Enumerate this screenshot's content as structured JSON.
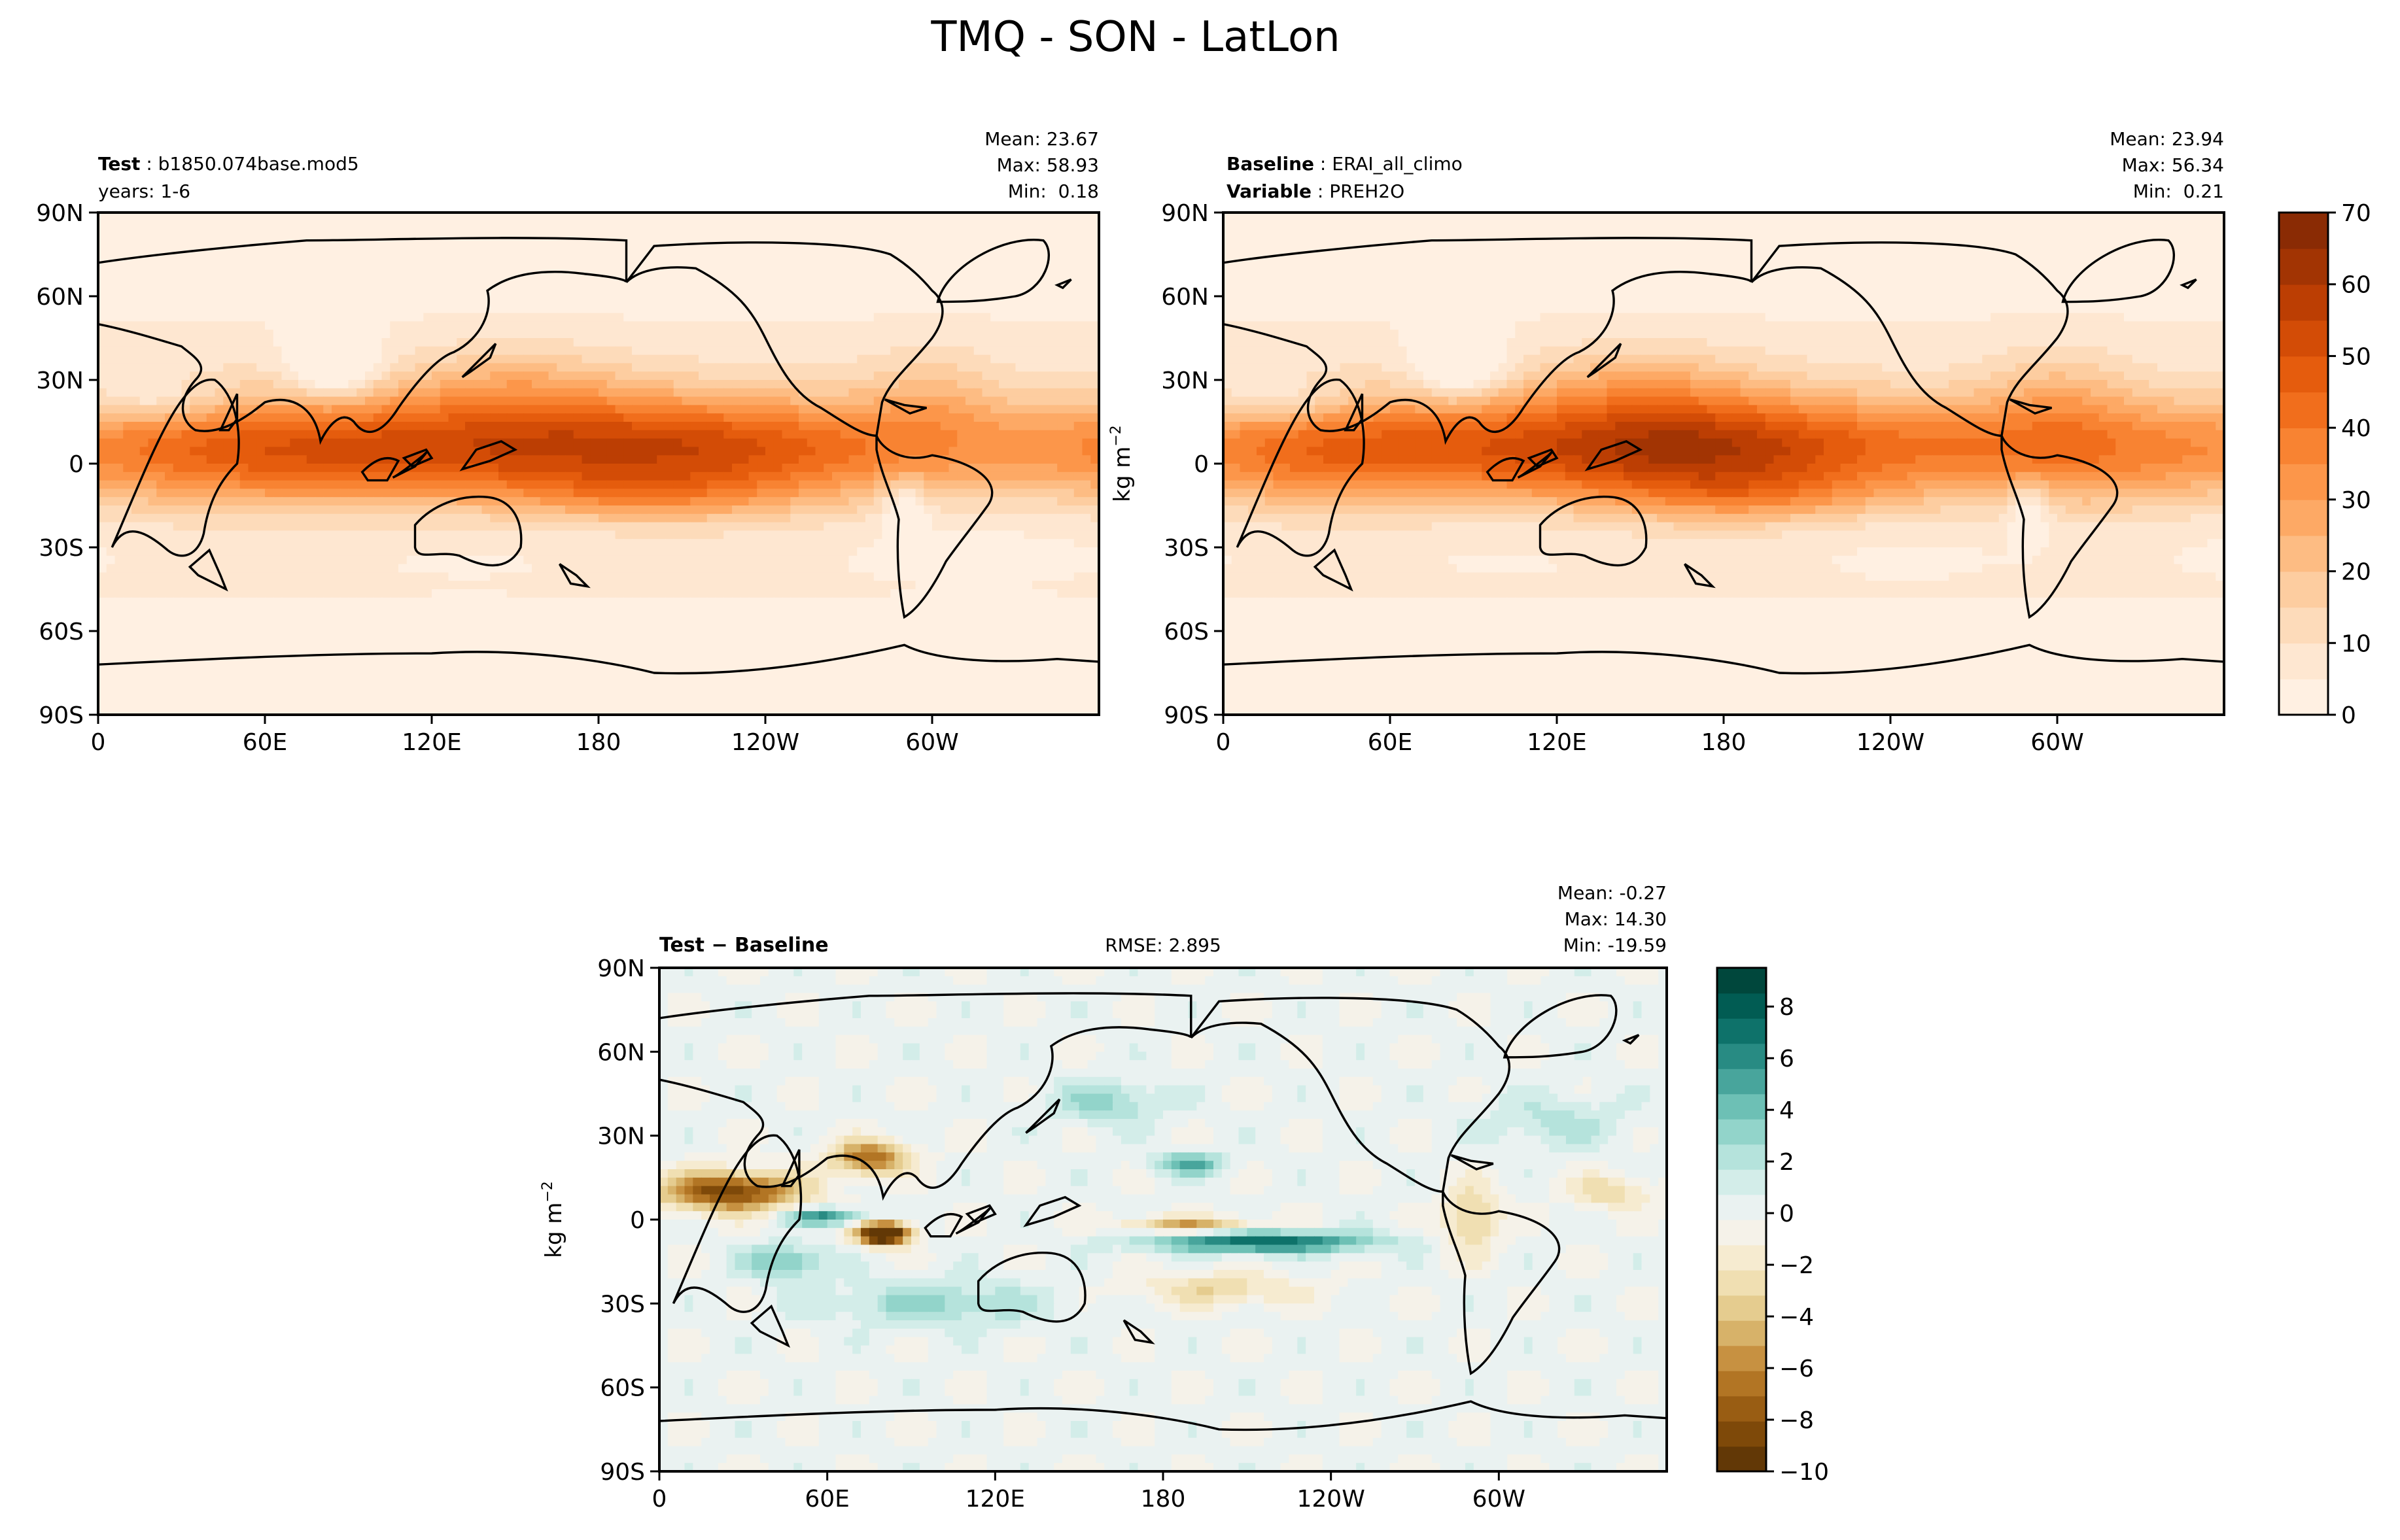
{
  "figure": {
    "title": "TMQ - SON - LatLon"
  },
  "chart_data": [
    {
      "type": "heatmap",
      "panel": "test",
      "header_left": [
        {
          "bold": "Test",
          "normal": "b1850.074base.mod5"
        },
        {
          "bold": "",
          "normal": "years: 1-6"
        }
      ],
      "header_center": "",
      "stats": [
        "Mean: 23.67",
        "Max: 58.93",
        "Min:  0.18"
      ],
      "field": {
        "mean": 23.67,
        "max": 58.93,
        "min": 0.18
      },
      "xticks": [
        "0",
        "60E",
        "120E",
        "180",
        "120W",
        "60W"
      ],
      "xtick_values": [
        0,
        60,
        120,
        180,
        240,
        300
      ],
      "yticks": [
        "90N",
        "60N",
        "30N",
        "0",
        "30S",
        "60S",
        "90S"
      ],
      "ytick_values": [
        90,
        60,
        30,
        0,
        -30,
        -60,
        -90
      ],
      "xlim": [
        0,
        360
      ],
      "ylim": [
        -90,
        90
      ],
      "ylabel": "",
      "colorbar": "shared-sequential"
    },
    {
      "type": "heatmap",
      "panel": "baseline",
      "header_left": [
        {
          "bold": "Baseline",
          "normal": "ERAI_all_climo"
        },
        {
          "bold": "Variable",
          "normal": "PREH2O"
        }
      ],
      "header_center": "",
      "stats": [
        "Mean: 23.94",
        "Max: 56.34",
        "Min:  0.21"
      ],
      "field": {
        "mean": 23.94,
        "max": 56.34,
        "min": 0.21
      },
      "xticks": [
        "0",
        "60E",
        "120E",
        "180",
        "120W",
        "60W"
      ],
      "xtick_values": [
        0,
        60,
        120,
        180,
        240,
        300
      ],
      "yticks": [
        "90N",
        "60N",
        "30N",
        "0",
        "30S",
        "60S",
        "90S"
      ],
      "ytick_values": [
        90,
        60,
        30,
        0,
        -30,
        -60,
        -90
      ],
      "xlim": [
        0,
        360
      ],
      "ylim": [
        -90,
        90
      ],
      "ylabel": "kg m",
      "ylabel_sup": "−2",
      "colorbar": {
        "ticks": [
          "0",
          "10",
          "20",
          "30",
          "40",
          "50",
          "60",
          "70"
        ],
        "tick_values": [
          0,
          10,
          20,
          30,
          40,
          50,
          60,
          70
        ],
        "range": [
          0,
          70
        ],
        "levels": 14,
        "colors": [
          "#fff5eb",
          "#fee8d3",
          "#fdd8b3",
          "#fdc28c",
          "#fda762",
          "#fb8d3d",
          "#f2701d",
          "#e25609",
          "#c44103",
          "#9f3303",
          "#7f2704"
        ]
      }
    },
    {
      "type": "heatmap",
      "panel": "difference",
      "header_left": [
        {
          "bold": "Test − Baseline",
          "normal": ""
        }
      ],
      "header_center": "RMSE: 2.895",
      "stats": [
        "Mean: -0.27",
        "Max: 14.30",
        "Min: -19.59"
      ],
      "field": {
        "mean": -0.27,
        "max": 14.3,
        "min": -19.59,
        "rmse": 2.895
      },
      "xticks": [
        "0",
        "60E",
        "120E",
        "180",
        "120W",
        "60W"
      ],
      "xtick_values": [
        0,
        60,
        120,
        180,
        240,
        300
      ],
      "yticks": [
        "90N",
        "60N",
        "30N",
        "0",
        "30S",
        "60S",
        "90S"
      ],
      "ytick_values": [
        90,
        60,
        30,
        0,
        -30,
        -60,
        -90
      ],
      "xlim": [
        0,
        360
      ],
      "ylim": [
        -90,
        90
      ],
      "ylabel": "kg m",
      "ylabel_sup": "−2",
      "colorbar": {
        "ticks": [
          "8",
          "6",
          "4",
          "2",
          "0",
          "−2",
          "−4",
          "−6",
          "−8",
          "−10"
        ],
        "tick_values": [
          8,
          6,
          4,
          2,
          0,
          -2,
          -4,
          -6,
          -8,
          -10
        ],
        "range": [
          -10,
          9.5
        ],
        "levels": 20,
        "colors": [
          "#543005",
          "#8c510a",
          "#bf812d",
          "#dfc27d",
          "#f6e8c3",
          "#f5f5f5",
          "#c7eae5",
          "#80cdc1",
          "#35978f",
          "#01665e",
          "#003c30"
        ]
      }
    }
  ]
}
